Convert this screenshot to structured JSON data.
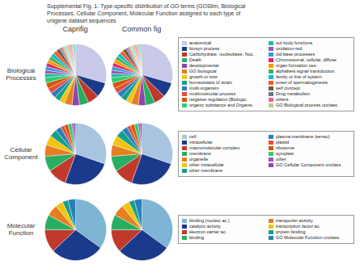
{
  "chart_data": {
    "type": "pie",
    "title": "Supplemental Fig. 1. Type-specific distribution of GO terms (GOSlim, Biological\nProcesses, Cellular Component, Molecular Function assigned to each type of\nunigene dataset sequences",
    "columns": [
      "Caprifig",
      "Common fig"
    ],
    "legend": "right",
    "series": [
      {
        "name": "Biological Processes",
        "categories": [
          "anatomical",
          "biosyn process",
          "Carbohydrate, nucleobase, Nuc.",
          "Death",
          "developmental",
          "GO biological",
          "growth or size",
          "homeostasis of strain",
          "multi-organism",
          "multimolecular process",
          "negative regulation (Biologic.",
          "organic substance and Organis.",
          "out body functions",
          "oxidation-red",
          "cid-base processes",
          "Chromosomal, cellular, diffuse",
          "organ formation use",
          "alphabets signal transduction",
          "family or line of system",
          "onset of spermatogenesis",
          "self concept",
          "Drug metabolism",
          "others",
          "GO Biological process unclass.",
          null,
          null,
          null,
          null,
          null,
          null
        ],
        "values": [
          30,
          8,
          6,
          5,
          4,
          4,
          3,
          3,
          3,
          3,
          3,
          3,
          2,
          2,
          2,
          2,
          2,
          2,
          2,
          2,
          2,
          1,
          1,
          1,
          1,
          1,
          1,
          1,
          1,
          1
        ],
        "colors": [
          "#c8c8e8",
          "#1a3a8c",
          "#c0392b",
          "#27ae60",
          "#8e44ad",
          "#e67e22",
          "#f1c40f",
          "#16a085",
          "#2980b9",
          "#e74c3c",
          "#d35400",
          "#2ecc71",
          "#1abc9c",
          "#9b59b6",
          "#3498db",
          "#e91e63",
          "#ff9800",
          "#4caf50",
          "#00bcd4",
          "#ff5722",
          "#795548",
          "#607d8b",
          "#f06292",
          "#aed581",
          "#80deea",
          "#ffb74d",
          "#ce93d8",
          "#ef9a9a",
          "#a5d6a7",
          "#80cbc4"
        ]
      },
      {
        "name": "Cellular Component",
        "categories": [
          "cell",
          "intracellular",
          "macromolecular complex",
          "membrane",
          "organelle",
          "other intracellular",
          "other membrane",
          "plasma membrane (sensu)",
          "plastid",
          "ribosome",
          "symplast",
          "other",
          "GO Cellular Component unclass."
        ],
        "values": [
          30,
          25,
          10,
          8,
          6,
          5,
          4,
          3,
          2,
          2,
          2,
          1,
          1
        ],
        "colors": [
          "#a8c4e0",
          "#1a3a8c",
          "#c0392b",
          "#27ae60",
          "#e67e22",
          "#f1c40f",
          "#16a085",
          "#2980b9",
          "#e74c3c",
          "#d35400",
          "#2ecc71",
          "#9b59b6",
          "#8e44ad"
        ]
      },
      {
        "name": "Molecular Function",
        "categories": [
          "binding (nucleic ac.)",
          "catalytic activity",
          "electron carrier ac.",
          "binding",
          "transporter activity",
          "transcription factor ac.",
          "protein binding",
          "GO Molecular Function unclass."
        ],
        "values": [
          35,
          28,
          12,
          8,
          6,
          4,
          3,
          4
        ],
        "colors": [
          "#7eb4d4",
          "#1a3a8c",
          "#c0392b",
          "#27ae60",
          "#e67e22",
          "#f1c40f",
          "#16a085",
          "#2980b9"
        ]
      }
    ]
  }
}
